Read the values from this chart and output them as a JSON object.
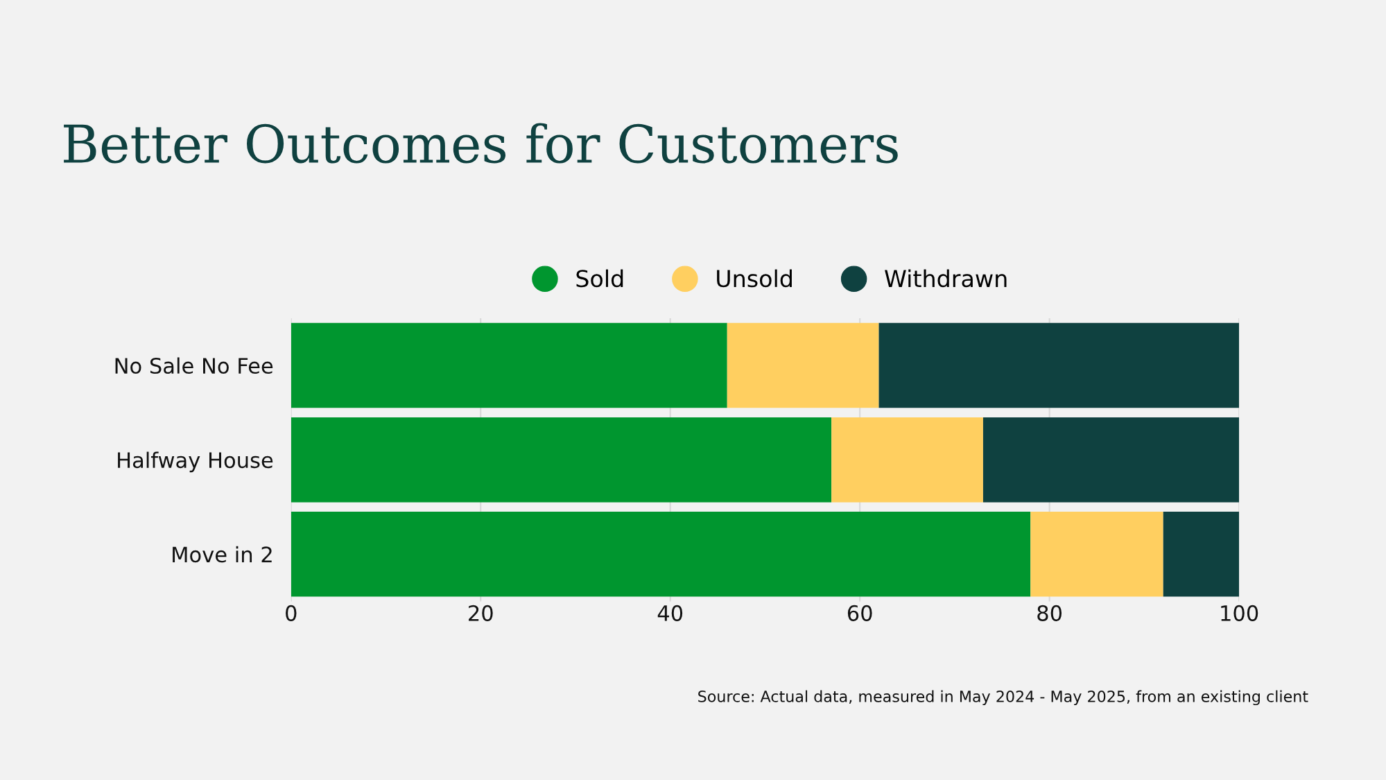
{
  "chart_data": {
    "type": "bar",
    "orientation": "horizontal",
    "stacked": true,
    "title": "Better Outcomes for Customers",
    "categories": [
      "No Sale No Fee",
      "Halfway House",
      "Move in 2"
    ],
    "series": [
      {
        "name": "Sold",
        "color": "#00962f",
        "values": [
          46,
          57,
          78
        ]
      },
      {
        "name": "Unsold",
        "color": "#ffcf60",
        "values": [
          16,
          16,
          14
        ]
      },
      {
        "name": "Withdrawn",
        "color": "#0f4140",
        "values": [
          38,
          27,
          8
        ]
      }
    ],
    "xlim": [
      0,
      100
    ],
    "xticks": [
      0,
      20,
      40,
      60,
      80,
      100
    ],
    "grid": "x",
    "legend": "top",
    "marker": "circle",
    "annotations": [
      "Source: Actual data, measured in May 2024 - May 2025, from an existing client"
    ]
  }
}
